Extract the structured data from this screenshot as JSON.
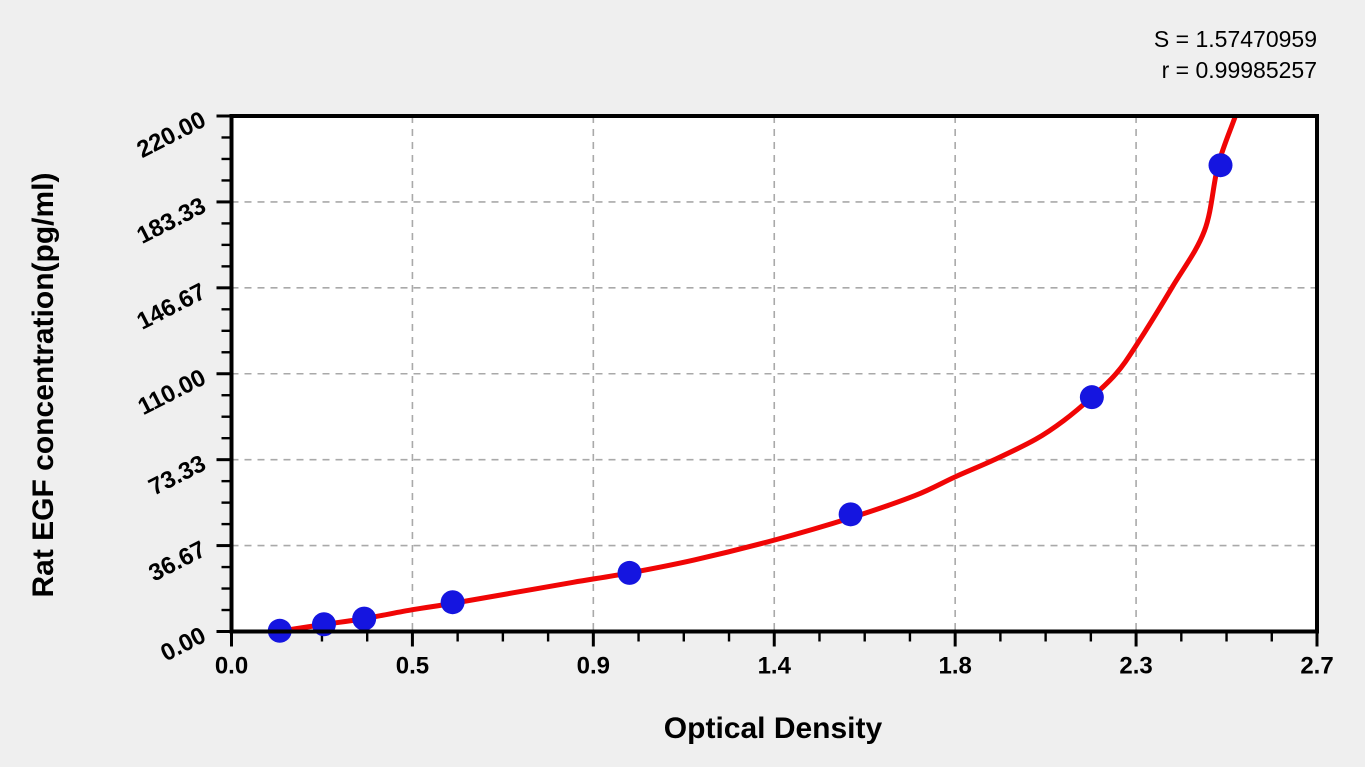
{
  "annotations": {
    "s": "S = 1.57470959",
    "r": "r = 0.99985257"
  },
  "chart_data": {
    "type": "scatter",
    "title": "",
    "xlabel": "Optical Density",
    "ylabel": "Rat EGF concentration(pg/ml)",
    "xlim": [
      0,
      2.7
    ],
    "ylim": [
      0,
      220
    ],
    "x_ticks": {
      "values": [
        0,
        0.45,
        0.9,
        1.35,
        1.8,
        2.25,
        2.7
      ],
      "labels": [
        "0.0",
        "0.5",
        "0.9",
        "1.4",
        "1.8",
        "2.3",
        "2.7"
      ],
      "minor_divisions": 4
    },
    "y_ticks": {
      "values": [
        0,
        36.667,
        73.333,
        110,
        146.667,
        183.333,
        220
      ],
      "labels": [
        "0.00",
        "36.67",
        "73.33",
        "110.00",
        "146.67",
        "183.33",
        "220.00"
      ],
      "minor_divisions": 4
    },
    "grid": {
      "style": "dashed",
      "color": "#a9a9a9",
      "at_major_ticks": true
    },
    "legend": "none",
    "fit_stats": {
      "S": "1.57470959",
      "r": "0.99985257"
    },
    "series": [
      {
        "name": "standard-points",
        "type": "scatter",
        "color": "#1515e0",
        "marker_radius": 12,
        "x": [
          0.12,
          0.23,
          0.33,
          0.55,
          0.99,
          1.54,
          2.14,
          2.46
        ],
        "y": [
          0.3,
          3.1,
          5.5,
          12.5,
          25,
          50,
          100,
          199
        ]
      },
      {
        "name": "fitted-curve",
        "type": "line",
        "color": "#f00505",
        "stroke_width": 5,
        "points": [
          [
            0.125,
            0.3
          ],
          [
            0.23,
            3.0
          ],
          [
            0.33,
            5.5
          ],
          [
            0.45,
            9.3
          ],
          [
            0.55,
            12
          ],
          [
            0.7,
            16.5
          ],
          [
            0.85,
            21
          ],
          [
            0.99,
            25
          ],
          [
            1.15,
            30.5
          ],
          [
            1.35,
            39
          ],
          [
            1.54,
            48.5
          ],
          [
            1.7,
            58
          ],
          [
            1.8,
            66
          ],
          [
            1.9,
            73.5
          ],
          [
            2.0,
            82
          ],
          [
            2.07,
            90
          ],
          [
            2.14,
            100
          ],
          [
            2.2,
            110
          ],
          [
            2.25,
            122
          ],
          [
            2.34,
            147
          ],
          [
            2.42,
            171
          ],
          [
            2.454,
            199
          ],
          [
            2.497,
            220
          ],
          [
            2.515,
            230
          ]
        ]
      }
    ]
  },
  "colors": {
    "page_background": "#efefef",
    "plot_background": "#ffffff",
    "frame": "#000000",
    "grid": "#a9a9a9",
    "curve": "#f00505",
    "points": "#1515e0",
    "text": "#000000"
  }
}
